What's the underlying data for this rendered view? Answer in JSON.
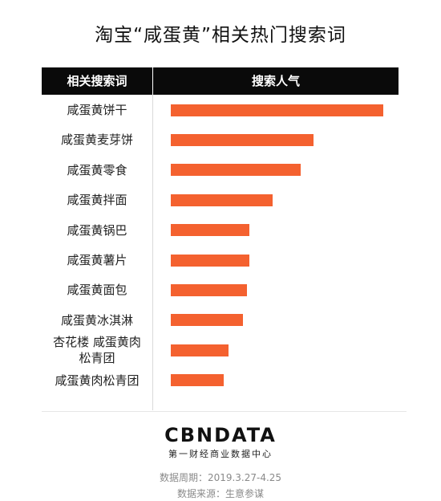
{
  "title": "淘宝“咸蛋黄”相关热门搜索词",
  "table_header": {
    "left": "相关搜索词",
    "right": "搜索人气"
  },
  "chart_data": {
    "type": "bar",
    "orientation": "horizontal",
    "categories": [
      "咸蛋黄饼干",
      "咸蛋黄麦芽饼",
      "咸蛋黄零食",
      "咸蛋黄拌面",
      "咸蛋黄锅巴",
      "咸蛋黄薯片",
      "咸蛋黄面包",
      "咸蛋黄冰淇淋",
      "杏花楼 咸蛋黄肉松青团",
      "咸蛋黄肉松青团"
    ],
    "category_display_lines": [
      [
        "咸蛋黄饼干"
      ],
      [
        "咸蛋黄麦芽饼"
      ],
      [
        "咸蛋黄零食"
      ],
      [
        "咸蛋黄拌面"
      ],
      [
        "咸蛋黄锅巴"
      ],
      [
        "咸蛋黄薯片"
      ],
      [
        "咸蛋黄面包"
      ],
      [
        "咸蛋黄冰淇淋"
      ],
      [
        "杏花楼 咸蛋黄肉",
        "松青团"
      ],
      [
        "咸蛋黄肉松青团"
      ]
    ],
    "values": [
      100,
      67,
      61,
      48,
      37,
      37,
      36,
      34,
      27,
      25
    ],
    "value_scale": "relative",
    "xlim": [
      0,
      100
    ],
    "bar_color": "#f4612f",
    "grid": false,
    "legend": "none"
  },
  "brand": {
    "logo": "CBNDATA",
    "subtitle": "第一财经商业数据中心"
  },
  "footer": {
    "period": "数据周期：2019.3.27-4.25",
    "source": "数据来源：生意参谋"
  }
}
